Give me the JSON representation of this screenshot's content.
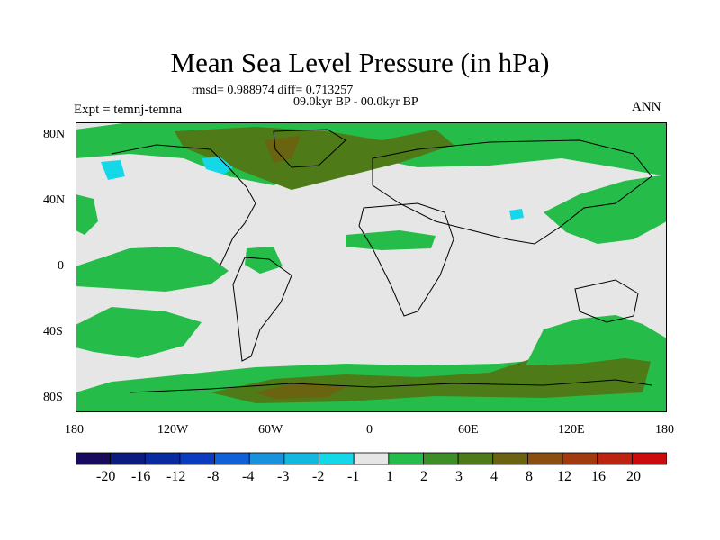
{
  "title": "Mean Sea Level Pressure (in hPa)",
  "stats": "rmsd= 0.988974 diff= 0.713257",
  "period": "09.0kyr BP - 00.0kyr BP",
  "experiment": "Expt = temnj-temna",
  "season": "ANN",
  "axes": {
    "y_ticks": [
      "80N",
      "40N",
      "0",
      "40S",
      "80S"
    ],
    "x_ticks": [
      "180",
      "120W",
      "60W",
      "0",
      "60E",
      "120E",
      "180"
    ]
  },
  "colorbar": {
    "colors": [
      "#1a0a5e",
      "#0d1a80",
      "#0a2aa0",
      "#0a3cc0",
      "#1060d8",
      "#1892dc",
      "#12b8e0",
      "#14d8e8",
      "#e6e6e6",
      "#26bc4a",
      "#3d8e26",
      "#4e7a18",
      "#6a6410",
      "#8a4e10",
      "#a23a0e",
      "#bc2410",
      "#cc0c0c"
    ],
    "labels": [
      "-20",
      "-16",
      "-12",
      "-8",
      "-4",
      "-3",
      "-2",
      "-1",
      "1",
      "2",
      "3",
      "4",
      "8",
      "12",
      "16",
      "20"
    ]
  },
  "palette": {
    "background": "#e6e6e6",
    "green": "#26bc4a",
    "olive": "#4e7a18",
    "brown": "#6a6410",
    "cyan": "#14d8e8",
    "coast": "#000000"
  }
}
